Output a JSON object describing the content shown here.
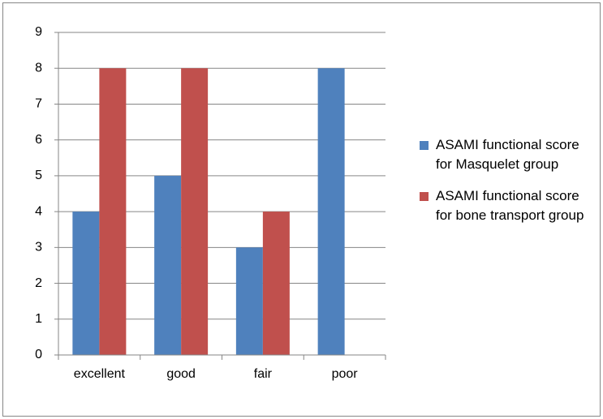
{
  "chart_data": {
    "type": "bar",
    "categories": [
      "excellent",
      "good",
      "fair",
      "poor"
    ],
    "series": [
      {
        "name": "ASAMI functional score for Masquelet group",
        "color": "#4f81bd",
        "values": [
          4,
          5,
          3,
          8
        ]
      },
      {
        "name": "ASAMI functional score for bone transport group",
        "color": "#c0504d",
        "values": [
          8,
          8,
          4,
          0
        ]
      }
    ],
    "ylim": [
      0,
      9
    ],
    "yticks": [
      0,
      1,
      2,
      3,
      4,
      5,
      6,
      7,
      8,
      9
    ],
    "grid": true,
    "legend": "right"
  }
}
